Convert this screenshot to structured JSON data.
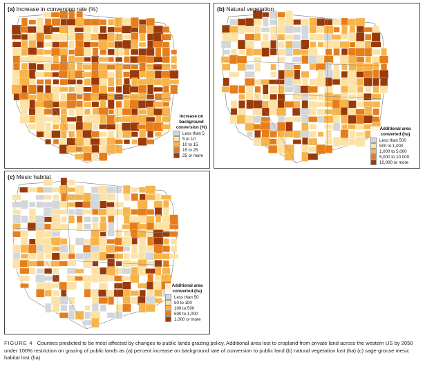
{
  "panels": [
    {
      "id": "a",
      "label": "(a)",
      "title": "Increase in conversion rate (%)",
      "legend": {
        "title_lines": [
          "Increase on",
          "background",
          "conversion (%)"
        ],
        "items": [
          {
            "label": "Less than 5",
            "color": "#d3d7d9"
          },
          {
            "label": "5 to 10",
            "color": "#fde2a6"
          },
          {
            "label": "10 to 15",
            "color": "#f7b44a"
          },
          {
            "label": "15 to 25",
            "color": "#e67e1c"
          },
          {
            "label": "25 or more",
            "color": "#9a3a0a"
          }
        ]
      }
    },
    {
      "id": "b",
      "label": "(b)",
      "title": "Natural vegetation",
      "legend": {
        "title_lines": [
          "Additional area",
          "converted (ha)"
        ],
        "items": [
          {
            "label": "Less than 500",
            "color": "#d3d7d9"
          },
          {
            "label": "500 to 1,000",
            "color": "#fde2a6"
          },
          {
            "label": "1,000 to 5,000",
            "color": "#f7b44a"
          },
          {
            "label": "5,000 to 10,000",
            "color": "#e67e1c"
          },
          {
            "label": "10,000 or more",
            "color": "#9a3a0a"
          }
        ]
      }
    },
    {
      "id": "c",
      "label": "(c)",
      "title": "Mesic habitat",
      "legend": {
        "title_lines": [
          "Additional area",
          "converted (ha)"
        ],
        "items": [
          {
            "label": "Less than 50",
            "color": "#d3d7d9"
          },
          {
            "label": "50 to 100",
            "color": "#fde2a6"
          },
          {
            "label": "100 to 500",
            "color": "#f7b44a"
          },
          {
            "label": "500 to 1,000",
            "color": "#e67e1c"
          },
          {
            "label": "1,000 or more",
            "color": "#9a3a0a"
          }
        ]
      }
    }
  ],
  "caption": {
    "figure_label": "FIGURE 4",
    "text": "Counties predicted to be most affected by changes to public lands grazing policy. Additional area lost to cropland from private land across the western US by 2050 under 100% restriction on grazing of public lands as (a) percent increase on background rate of conversion to public land (b) natural vegetation lost (ha) (c) sage-grouse mesic habitat lost (ha)"
  }
}
